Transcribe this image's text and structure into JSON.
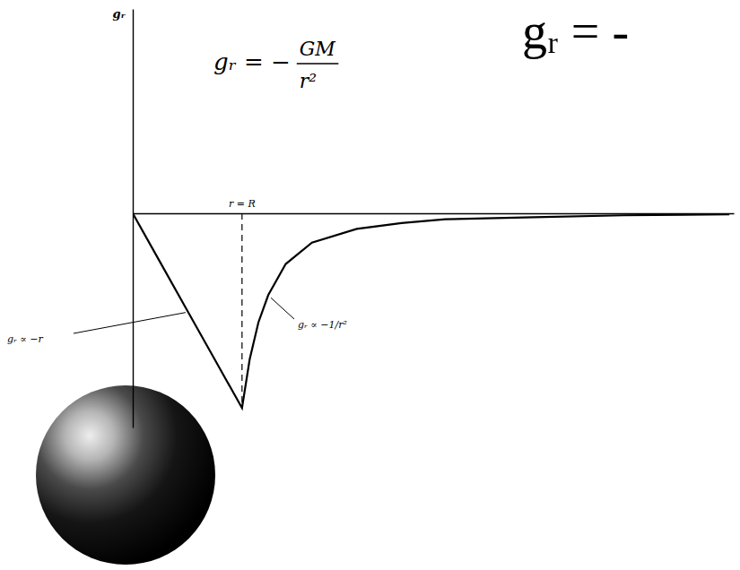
{
  "chart_data": {
    "type": "line",
    "y_label": "gᵣ",
    "x": [
      0,
      0.25,
      0.5,
      0.75,
      1,
      1.07,
      1.15,
      1.24,
      1.4,
      1.64,
      2.05,
      2.46,
      2.86,
      3.67,
      4.49,
      5.46
    ],
    "series": [
      {
        "color": "#000000",
        "line_style": "solid",
        "marker": "none",
        "values": [
          0,
          -0.25,
          -0.5,
          -0.75,
          -1,
          -0.75,
          -0.56,
          -0.42,
          -0.26,
          -0.15,
          -0.08,
          -0.05,
          -0.03,
          -0.02,
          -0.01,
          -0.005
        ]
      }
    ],
    "xlim": [
      0,
      5.5
    ],
    "ylim": [
      -1.1,
      1.05
    ],
    "xticks": [],
    "yticks": [],
    "tick_labels": false,
    "grid": false,
    "annotations": {
      "r_marker": {
        "text": "r = R",
        "x": 1
      },
      "inner_law": "gᵣ ∝ −r",
      "outer_law": "gᵣ ∝ −1/r²",
      "formula": {
        "lhs": "gᵣ = −",
        "numerator": "GM",
        "denominator": "r²"
      },
      "heading": "gᵣ = -"
    }
  }
}
